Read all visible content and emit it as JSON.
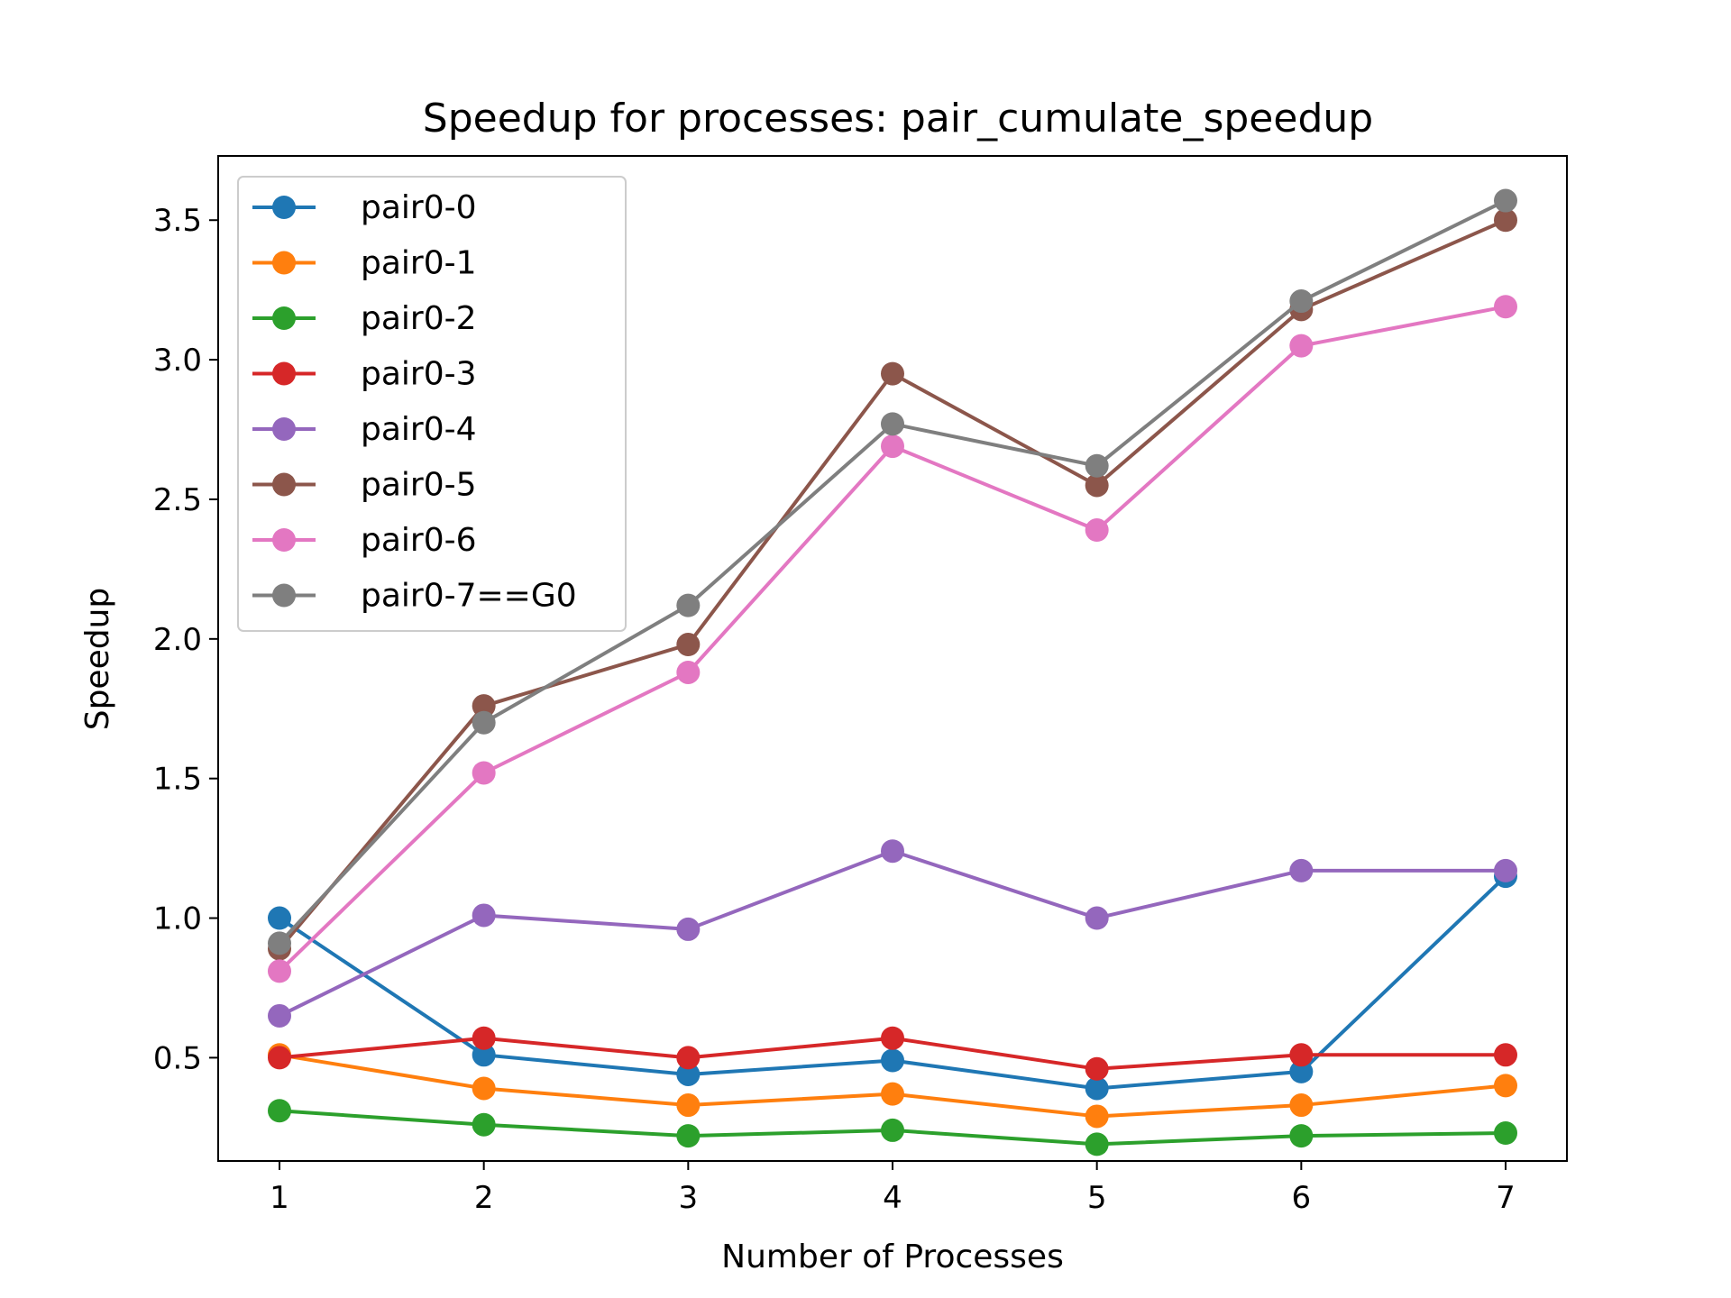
{
  "chart_data": {
    "type": "line",
    "title": "Speedup for processes: pair_cumulate_speedup",
    "xlabel": "Number of Processes",
    "ylabel": "Speedup",
    "x": [
      1,
      2,
      3,
      4,
      5,
      6,
      7
    ],
    "xticks": [
      "1",
      "2",
      "3",
      "4",
      "5",
      "6",
      "7"
    ],
    "yticks": [
      "0.5",
      "1.0",
      "1.5",
      "2.0",
      "2.5",
      "3.0",
      "3.5"
    ],
    "ylim": [
      0.13,
      3.73
    ],
    "xlim": [
      0.7,
      7.3
    ],
    "grid": false,
    "legend_position": "upper-left",
    "series": [
      {
        "name": "pair0-0",
        "color": "#1f77b4",
        "values": [
          1.0,
          0.51,
          0.44,
          0.49,
          0.39,
          0.45,
          1.15
        ]
      },
      {
        "name": "pair0-1",
        "color": "#ff7f0e",
        "values": [
          0.51,
          0.39,
          0.33,
          0.37,
          0.29,
          0.33,
          0.4
        ]
      },
      {
        "name": "pair0-2",
        "color": "#2ca02c",
        "values": [
          0.31,
          0.26,
          0.22,
          0.24,
          0.19,
          0.22,
          0.23
        ]
      },
      {
        "name": "pair0-3",
        "color": "#d62728",
        "values": [
          0.5,
          0.57,
          0.5,
          0.57,
          0.46,
          0.51,
          0.51
        ]
      },
      {
        "name": "pair0-4",
        "color": "#9467bd",
        "values": [
          0.65,
          1.01,
          0.96,
          1.24,
          1.0,
          1.17,
          1.17
        ]
      },
      {
        "name": "pair0-5",
        "color": "#8c564b",
        "values": [
          0.89,
          1.76,
          1.98,
          2.95,
          2.55,
          3.18,
          3.5
        ]
      },
      {
        "name": "pair0-6",
        "color": "#e377c2",
        "values": [
          0.81,
          1.52,
          1.88,
          2.69,
          2.39,
          3.05,
          3.19
        ]
      },
      {
        "name": "pair0-7==G0",
        "color": "#7f7f7f",
        "values": [
          0.91,
          1.7,
          2.12,
          2.77,
          2.62,
          3.21,
          3.57
        ]
      }
    ]
  }
}
